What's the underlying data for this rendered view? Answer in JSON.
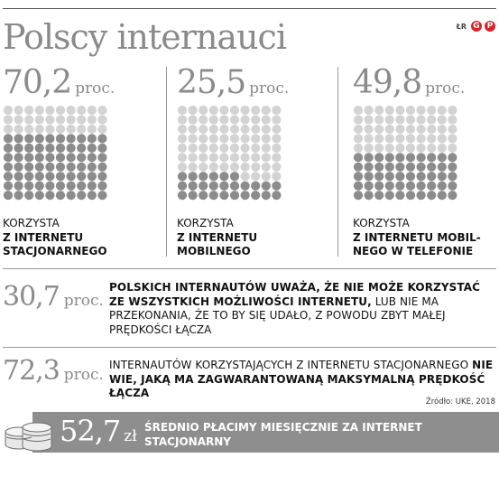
{
  "header": {
    "title": "Polscy internauci",
    "brand_initials": "ŁR",
    "brand_logo_text": [
      "G",
      "P"
    ]
  },
  "columns": [
    {
      "value": "70,2",
      "unit": "proc.",
      "fraction": 0.702,
      "desc_line1": "KORZYSTA",
      "desc_line2": "Z INTERNETU",
      "desc_line3": "STACJONARNEGO"
    },
    {
      "value": "25,5",
      "unit": "proc.",
      "fraction": 0.255,
      "desc_line1": "KORZYSTA",
      "desc_line2": "Z INTERNETU",
      "desc_line3": "MOBILNEGO"
    },
    {
      "value": "49,8",
      "unit": "proc.",
      "fraction": 0.498,
      "desc_line1": "KORZYSTA",
      "desc_line2": "Z INTERNETU MOBIL-",
      "desc_line3": "NEGO W TELEFONIE"
    }
  ],
  "stats": [
    {
      "value": "30,7",
      "unit": "proc.",
      "text_bold": "POLSKICH INTERNAUTÓW UWAŻA, ŻE NIE MOŻE KORZYSTAĆ ZE WSZYSTKICH MOŻLIWOŚCI INTERNETU,",
      "text_regular": " LUB NIE MA PRZEKONANIA, ŻE TO BY SIĘ UDAŁO, Z POWODU ZBYT MAŁEJ PRĘDKOŚCI ŁĄCZA"
    },
    {
      "value": "72,3",
      "unit": "proc.",
      "text_regular": "INTERNAUTÓW KORZYSTAJĄCYCH Z INTERNETU STACJONARNEGO ",
      "text_bold": "NIE WIE, JAKĄ MA ZAGWARANTOWANĄ MAKSYMALNĄ PRĘDKOŚĆ ŁĄCZA"
    }
  ],
  "source": "Źródło: UKE, 2018",
  "summary": {
    "value": "52,7",
    "unit": "zł",
    "text": "ŚREDNIO PŁACIMY MIESIĘCZNIE ZA INTERNET STACJONARNY"
  },
  "colors": {
    "dot_filled": "#8c8c8c",
    "dot_empty": "#d3d3d3",
    "number_gray": "#8a8a8a",
    "bar_gray": "#8e8e8e",
    "brand_red": "#d8232a"
  },
  "chart_data": {
    "type": "bar",
    "categories": [
      "KORZYSTA Z INTERNETU STACJONARNEGO",
      "KORZYSTA Z INTERNETU MOBILNEGO",
      "KORZYSTA Z INTERNETU MOBILNEGO W TELEFONIE"
    ],
    "values": [
      70.2,
      25.5,
      49.8
    ],
    "title": "Polscy internauci",
    "xlabel": "",
    "ylabel": "",
    "ylim": [
      0,
      100
    ],
    "grid": false
  }
}
